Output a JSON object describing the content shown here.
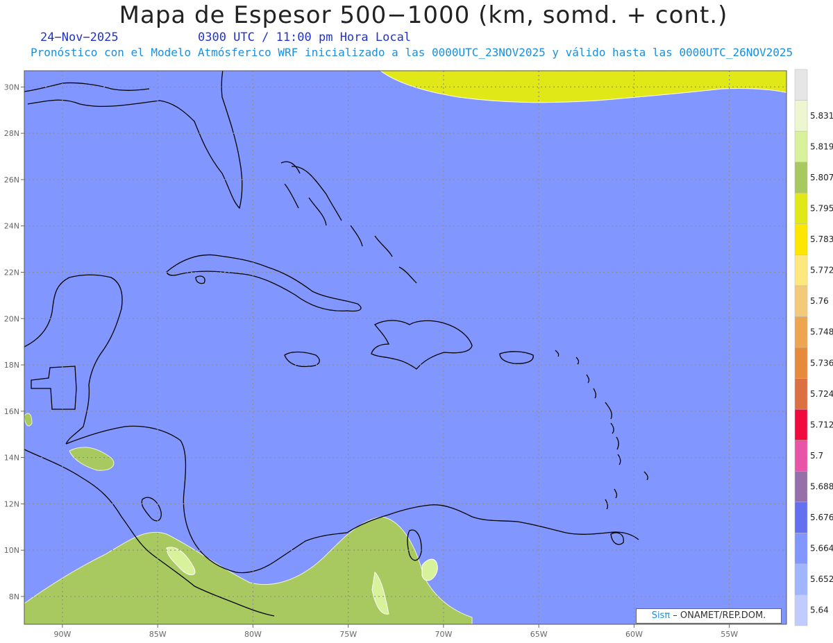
{
  "header": {
    "title": "Mapa de Espesor 500−1000 (km, somd. + cont.)",
    "date": "24−Nov−2025",
    "time": "0300 UTC / 11:00 pm Hora Local",
    "forecast": "Pronóstico con el Modelo Atmósferico WRF inicializado a las 0000UTC_23NOV2025 y válido hasta las  0000UTC_26NOV2025"
  },
  "map": {
    "lon_range": [
      -92,
      -52
    ],
    "lat_range": [
      6.8,
      30.7
    ],
    "lon_ticks": [
      -90,
      -85,
      -80,
      -75,
      -70,
      -65,
      -60,
      -55
    ],
    "lon_labels": [
      "90W",
      "85W",
      "80W",
      "75W",
      "70W",
      "65W",
      "60W",
      "55W"
    ],
    "lat_ticks": [
      8,
      10,
      12,
      14,
      16,
      18,
      20,
      22,
      24,
      26,
      28,
      30
    ],
    "lat_labels": [
      "8N",
      "10N",
      "12N",
      "14N",
      "16N",
      "18N",
      "20N",
      "22N",
      "24N",
      "26N",
      "28N",
      "30N"
    ],
    "grid": true
  },
  "colorbar": {
    "labels": [
      "5.64",
      "5.652",
      "5.664",
      "5.676",
      "5.688",
      "5.7",
      "5.712",
      "5.724",
      "5.736",
      "5.748",
      "5.76",
      "5.772",
      "5.783",
      "5.795",
      "5.807",
      "5.819",
      "5.831"
    ],
    "colors": [
      "#c0ccff",
      "#a0b4ff",
      "#8296ff",
      "#6470f0",
      "#9670a8",
      "#e855a8",
      "#f00a40",
      "#dc7040",
      "#e68a3c",
      "#eda550",
      "#f2ca7a",
      "#fde87e",
      "#fde600",
      "#e1e818",
      "#a8c860",
      "#d8f29c",
      "#eef6d0",
      "#e6e6e6"
    ]
  },
  "credit": {
    "brand": "Sisπ",
    "text": " – ONAMET/REP.DOM."
  }
}
